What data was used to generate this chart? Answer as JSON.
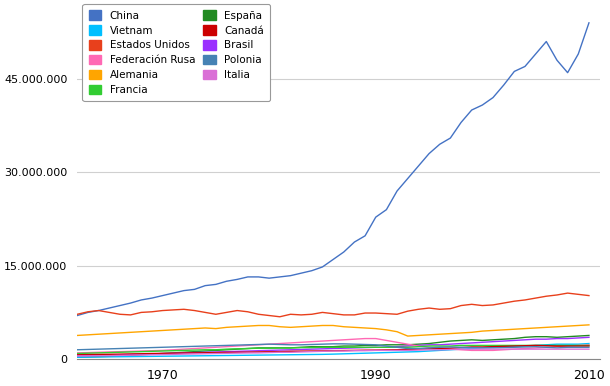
{
  "years": [
    1962,
    1963,
    1964,
    1965,
    1966,
    1967,
    1968,
    1969,
    1970,
    1971,
    1972,
    1973,
    1974,
    1975,
    1976,
    1977,
    1978,
    1979,
    1980,
    1981,
    1982,
    1983,
    1984,
    1985,
    1986,
    1987,
    1988,
    1989,
    1990,
    1991,
    1992,
    1993,
    1994,
    1995,
    1996,
    1997,
    1998,
    1999,
    2000,
    2001,
    2002,
    2003,
    2004,
    2005,
    2006,
    2007,
    2008,
    2009,
    2010
  ],
  "series": {
    "China": [
      7000000,
      7500000,
      7800000,
      8200000,
      8600000,
      9000000,
      9500000,
      9800000,
      10200000,
      10600000,
      11000000,
      11200000,
      11800000,
      12000000,
      12500000,
      12800000,
      13200000,
      13200000,
      13000000,
      13200000,
      13400000,
      13800000,
      14200000,
      14800000,
      16000000,
      17200000,
      18800000,
      19800000,
      22800000,
      24000000,
      27000000,
      29000000,
      31000000,
      33000000,
      34500000,
      35500000,
      38000000,
      40000000,
      40800000,
      42000000,
      44000000,
      46200000,
      47000000,
      49000000,
      51000000,
      48000000,
      46000000,
      49000000,
      54000000
    ],
    "Estados Unidos": [
      7200000,
      7600000,
      7800000,
      7500000,
      7200000,
      7100000,
      7500000,
      7600000,
      7800000,
      7900000,
      8000000,
      7800000,
      7500000,
      7200000,
      7500000,
      7800000,
      7600000,
      7200000,
      7000000,
      6800000,
      7200000,
      7100000,
      7200000,
      7500000,
      7300000,
      7100000,
      7100000,
      7400000,
      7400000,
      7300000,
      7200000,
      7700000,
      8000000,
      8200000,
      8000000,
      8100000,
      8600000,
      8800000,
      8600000,
      8700000,
      9000000,
      9300000,
      9500000,
      9800000,
      10100000,
      10300000,
      10600000,
      10400000,
      10200000
    ],
    "Alemania": [
      3800000,
      3900000,
      4000000,
      4100000,
      4200000,
      4300000,
      4400000,
      4500000,
      4600000,
      4700000,
      4800000,
      4900000,
      5000000,
      4900000,
      5100000,
      5200000,
      5300000,
      5400000,
      5400000,
      5200000,
      5100000,
      5200000,
      5300000,
      5400000,
      5400000,
      5200000,
      5100000,
      5000000,
      4900000,
      4700000,
      4400000,
      3700000,
      3800000,
      3900000,
      4000000,
      4100000,
      4200000,
      4300000,
      4500000,
      4600000,
      4700000,
      4800000,
      4900000,
      5000000,
      5100000,
      5200000,
      5300000,
      5400000,
      5500000
    ],
    "España": [
      300000,
      350000,
      400000,
      450000,
      500000,
      600000,
      700000,
      800000,
      900000,
      1000000,
      1100000,
      1200000,
      1300000,
      1400000,
      1500000,
      1600000,
      1700000,
      1800000,
      1800000,
      1800000,
      1800000,
      1900000,
      2000000,
      2000000,
      2000000,
      2100000,
      2100000,
      2200000,
      2200000,
      2300000,
      2300000,
      2300000,
      2400000,
      2500000,
      2700000,
      2900000,
      3000000,
      3100000,
      3000000,
      3100000,
      3200000,
      3300000,
      3500000,
      3600000,
      3600000,
      3500000,
      3600000,
      3700000,
      3800000
    ],
    "Brasil": [
      500000,
      550000,
      600000,
      650000,
      700000,
      750000,
      800000,
      850000,
      900000,
      950000,
      1000000,
      1050000,
      1100000,
      1150000,
      1200000,
      1250000,
      1300000,
      1350000,
      1400000,
      1450000,
      1500000,
      1550000,
      1600000,
      1650000,
      1700000,
      1750000,
      1800000,
      1850000,
      1900000,
      1900000,
      2000000,
      2100000,
      2200000,
      2300000,
      2300000,
      2400000,
      2500000,
      2600000,
      2700000,
      2800000,
      2900000,
      3000000,
      3100000,
      3200000,
      3200000,
      3300000,
      3300000,
      3400000,
      3500000
    ],
    "Vietnam": [
      300000,
      320000,
      340000,
      360000,
      380000,
      400000,
      420000,
      440000,
      460000,
      480000,
      500000,
      520000,
      540000,
      560000,
      580000,
      600000,
      620000,
      640000,
      660000,
      680000,
      700000,
      720000,
      740000,
      760000,
      800000,
      850000,
      900000,
      950000,
      1000000,
      1050000,
      1100000,
      1150000,
      1200000,
      1300000,
      1400000,
      1500000,
      1600000,
      1700000,
      1800000,
      1900000,
      2000000,
      2000000,
      2100000,
      2200000,
      2300000,
      2400000,
      2400000,
      2400000,
      2500000
    ],
    "Federación Rusa": [
      1000000,
      1050000,
      1100000,
      1150000,
      1200000,
      1250000,
      1300000,
      1350000,
      1400000,
      1500000,
      1600000,
      1700000,
      1800000,
      1900000,
      2000000,
      2100000,
      2200000,
      2300000,
      2400000,
      2500000,
      2600000,
      2700000,
      2800000,
      2900000,
      3000000,
      3100000,
      3200000,
      3300000,
      3300000,
      3000000,
      2700000,
      2400000,
      2100000,
      1900000,
      1700000,
      1600000,
      1500000,
      1400000,
      1400000,
      1400000,
      1500000,
      1600000,
      1700000,
      1800000,
      1900000,
      2000000,
      2100000,
      2200000,
      2300000
    ],
    "Francia": [
      900000,
      950000,
      1000000,
      1050000,
      1100000,
      1150000,
      1200000,
      1250000,
      1300000,
      1350000,
      1400000,
      1450000,
      1500000,
      1500000,
      1600000,
      1650000,
      1700000,
      1750000,
      1750000,
      1800000,
      1800000,
      1850000,
      1850000,
      1900000,
      1900000,
      1900000,
      1900000,
      1900000,
      1900000,
      1900000,
      1900000,
      1900000,
      2000000,
      2100000,
      2100000,
      2100000,
      2200000,
      2200000,
      2200000,
      2200000,
      2200000,
      2200000,
      2200000,
      2200000,
      2200000,
      2200000,
      2200000,
      2200000,
      2200000
    ],
    "Canadá": [
      700000,
      720000,
      750000,
      770000,
      800000,
      830000,
      860000,
      900000,
      920000,
      950000,
      980000,
      1000000,
      1020000,
      1050000,
      1080000,
      1100000,
      1120000,
      1150000,
      1180000,
      1200000,
      1250000,
      1280000,
      1300000,
      1320000,
      1350000,
      1380000,
      1400000,
      1430000,
      1450000,
      1480000,
      1500000,
      1540000,
      1600000,
      1650000,
      1700000,
      1750000,
      1850000,
      1950000,
      1950000,
      2000000,
      2050000,
      2100000,
      2150000,
      2200000,
      2150000,
      2100000,
      2100000,
      2100000,
      2100000
    ],
    "Polonia": [
      1500000,
      1550000,
      1600000,
      1650000,
      1700000,
      1750000,
      1800000,
      1850000,
      1900000,
      1950000,
      2000000,
      2050000,
      2100000,
      2150000,
      2200000,
      2250000,
      2300000,
      2350000,
      2400000,
      2350000,
      2300000,
      2300000,
      2350000,
      2400000,
      2450000,
      2450000,
      2400000,
      2350000,
      2300000,
      2100000,
      1900000,
      1700000,
      1700000,
      1800000,
      1900000,
      1950000,
      1900000,
      1850000,
      1800000,
      1800000,
      1850000,
      1900000,
      1950000,
      2000000,
      1900000,
      1800000,
      1900000,
      1900000,
      1900000
    ],
    "Italia": [
      500000,
      520000,
      540000,
      560000,
      600000,
      630000,
      660000,
      700000,
      730000,
      760000,
      800000,
      830000,
      860000,
      900000,
      930000,
      960000,
      990000,
      1000000,
      1050000,
      1100000,
      1100000,
      1150000,
      1200000,
      1250000,
      1300000,
      1300000,
      1350000,
      1350000,
      1400000,
      1400000,
      1400000,
      1400000,
      1450000,
      1500000,
      1500000,
      1550000,
      1600000,
      1600000,
      1600000,
      1600000,
      1600000,
      1600000,
      1600000,
      1600000,
      1600000,
      1600000,
      1600000,
      1600000,
      1600000
    ]
  },
  "legend_order": [
    "China",
    "Vietnam",
    "Estados Unidos",
    "Federación Rusa",
    "Alemania",
    "Francia",
    "España",
    "Canadá",
    "Brasil",
    "Polonia",
    "Italia"
  ],
  "colors": {
    "China": "#4472C4",
    "Estados Unidos": "#E8401C",
    "Alemania": "#FFA500",
    "España": "#228B22",
    "Brasil": "#9B30FF",
    "Vietnam": "#00BFFF",
    "Federación Rusa": "#FF69B4",
    "Francia": "#32CD32",
    "Canadá": "#CC0000",
    "Polonia": "#4682B4",
    "Italia": "#DA70D6"
  },
  "ylim": [
    0,
    57000000
  ],
  "yticks": [
    0,
    15000000,
    30000000,
    45000000
  ],
  "ytick_labels": [
    "0",
    "15.000.000",
    "30.000.000",
    "45.000.000"
  ],
  "xticks": [
    1970,
    1990,
    2010
  ],
  "xlim": [
    1962,
    2011
  ],
  "background_color": "#ffffff",
  "grid_color": "#d0d0d0",
  "legend_ncol": 2,
  "legend_col1": [
    "China",
    "Estados Unidos",
    "Alemania",
    "España",
    "Brasil"
  ],
  "legend_col2": [
    "Vietnam",
    "Federación Rusa",
    "Francia",
    "Canadá",
    "Polonia",
    "Italia"
  ]
}
